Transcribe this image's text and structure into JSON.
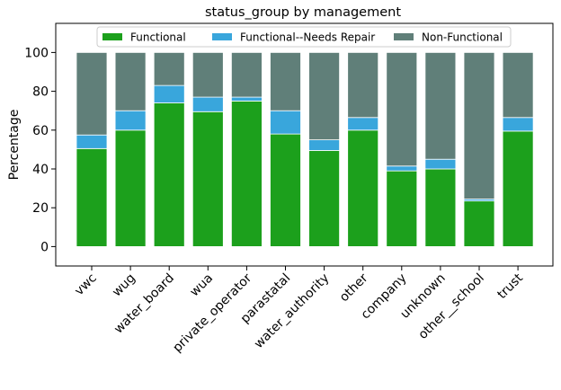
{
  "chart_data": {
    "type": "bar",
    "stacked": true,
    "title": "status_group by management",
    "xlabel": "",
    "ylabel": "Percentage",
    "ylim": [
      -10,
      115
    ],
    "yticks": [
      0,
      20,
      40,
      60,
      80,
      100
    ],
    "grid": false,
    "legend_position": "top-center",
    "categories": [
      "vwc",
      "wug",
      "water_board",
      "wua",
      "private_operator",
      "parastatal",
      "water_authority",
      "other",
      "company",
      "unknown",
      "other__school",
      "trust"
    ],
    "series": [
      {
        "name": "Functional",
        "color": "#1ca01c",
        "values": [
          50.5,
          60,
          74,
          69.5,
          75,
          58,
          49.5,
          60,
          39,
          40,
          23.5,
          59.5
        ]
      },
      {
        "name": "Functional--Needs Repair",
        "color": "#39a6dc",
        "values": [
          7,
          10,
          9,
          7.5,
          2,
          12,
          5.5,
          6.5,
          2.5,
          5,
          1,
          7
        ]
      },
      {
        "name": "Non-Functional",
        "color": "#607f79",
        "values": [
          42.5,
          30,
          17,
          23,
          23,
          30,
          45,
          33.5,
          58.5,
          55,
          75.5,
          33.5
        ]
      }
    ]
  }
}
